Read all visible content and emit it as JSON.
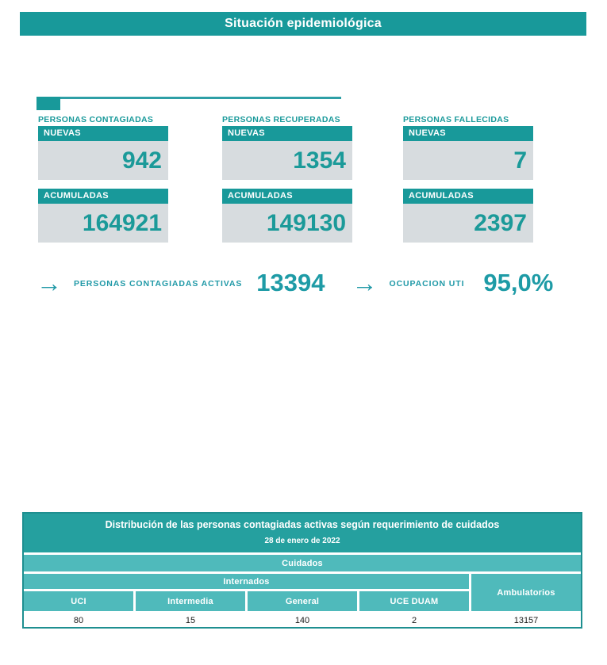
{
  "title": "Situación epidemiológica",
  "stats": {
    "columns": [
      {
        "label": "PERSONAS CONTAGIADAS",
        "new_label": "NUEVAS",
        "new_value": "942",
        "cum_label": "ACUMULADAS",
        "cum_value": "164921"
      },
      {
        "label": "PERSONAS RECUPERADAS",
        "new_label": "NUEVAS",
        "new_value": "1354",
        "cum_label": "ACUMULADAS",
        "cum_value": "149130"
      },
      {
        "label": "PERSONAS FALLECIDAS",
        "new_label": "NUEVAS",
        "new_value": "7",
        "cum_label": "ACUMULADAS",
        "cum_value": "2397"
      }
    ]
  },
  "actives": {
    "arrow_glyph": "→",
    "label1": "PERSONAS CONTAGIADAS ACTIVAS",
    "value1": "13394",
    "label2": "OCUPACION UTI",
    "value2": "95,0%"
  },
  "table": {
    "title": "Distribución de las personas contagiadas activas según requerimiento de cuidados",
    "date": "28 de enero de 2022",
    "group_header": "Cuidados",
    "subgroup_header": "Internados",
    "ambulatory_header": "Ambulatorios",
    "columns": [
      "UCI",
      "Intermedia",
      "General",
      "UCE DUAM"
    ],
    "values": [
      "80",
      "15",
      "140",
      "2"
    ],
    "ambulatory_value": "13157"
  },
  "colors": {
    "teal_primary": "#18999A",
    "teal_table_head": "#25A09F",
    "teal_light": "#4FBABB",
    "teal_border": "#1E8F90",
    "teal_actives": "#2099A7",
    "card_body_gray": "#D7DCDF",
    "value_teal": "#1B9A99"
  }
}
